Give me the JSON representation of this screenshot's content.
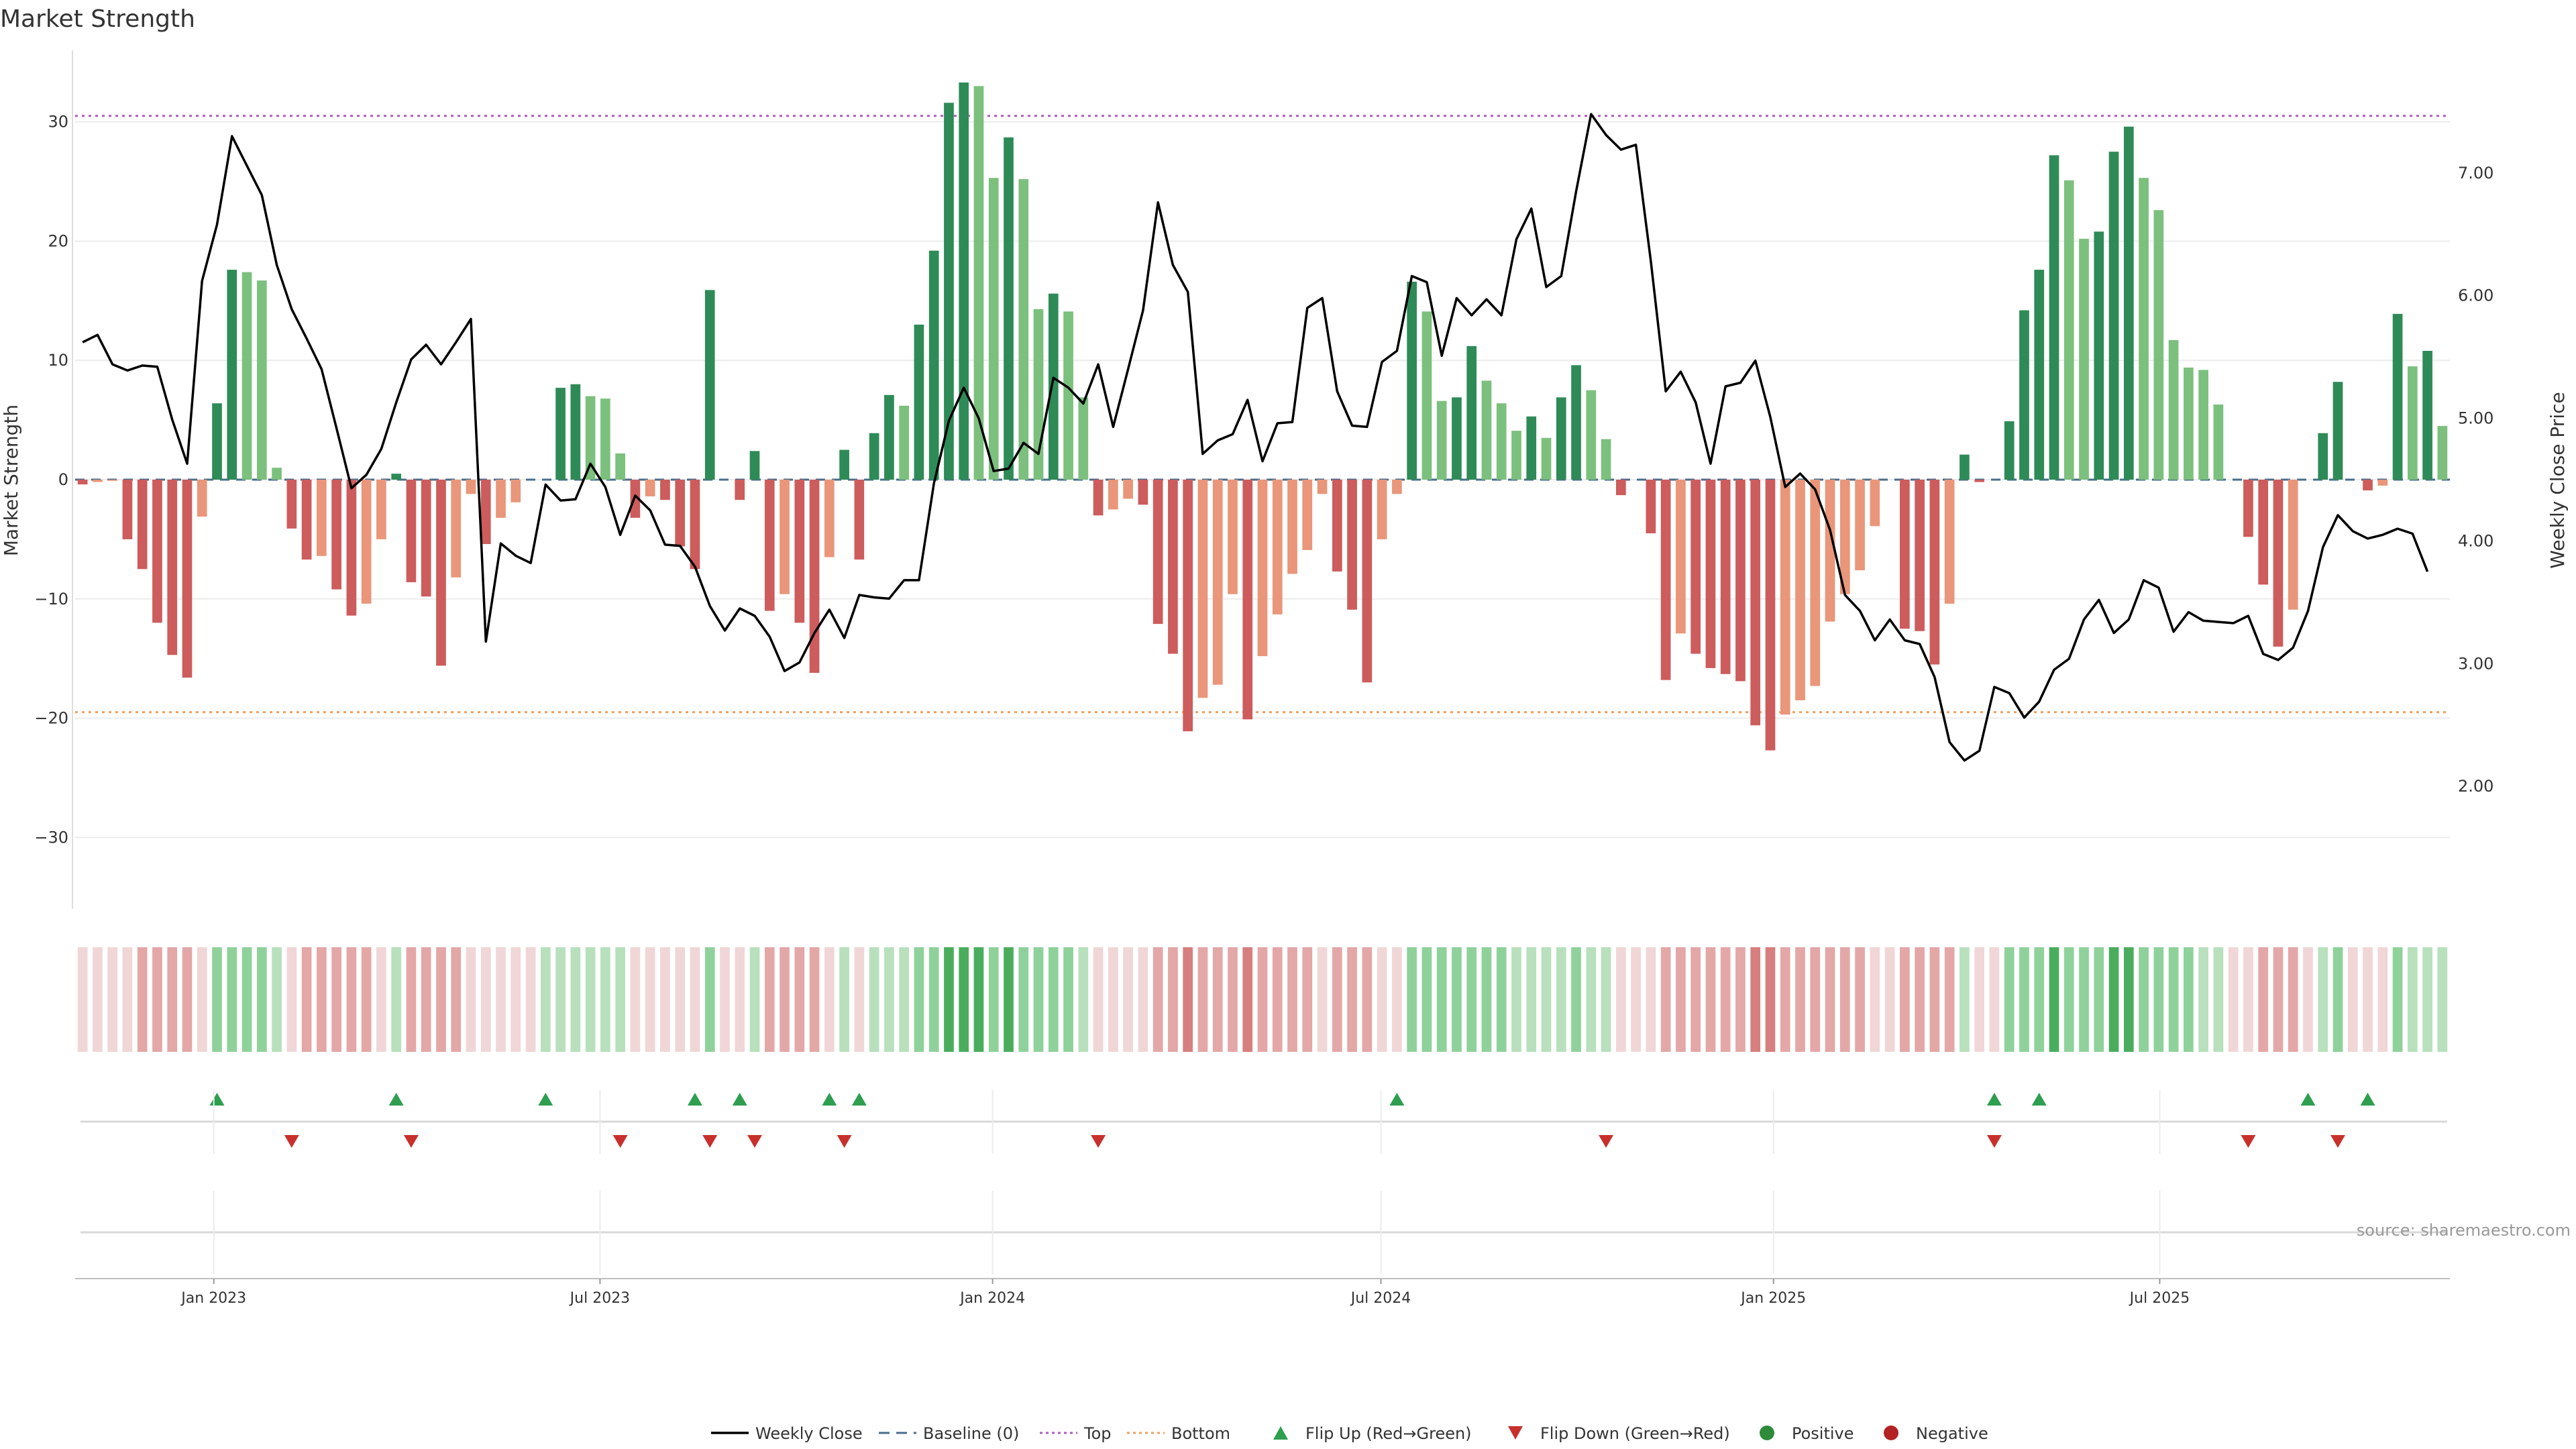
{
  "title": "Market Strength",
  "source": "source: sharemaestro.com",
  "chart_data": {
    "type": "bar",
    "title": "Market Strength",
    "ylabel": "Market Strength",
    "y2label": "Weekly Close Price",
    "ylim": [
      -36,
      36
    ],
    "y2lim": [
      1.0,
      8.0
    ],
    "yticks": [
      30,
      20,
      10,
      0,
      -10,
      -20,
      -30
    ],
    "y2ticks": [
      "7.00",
      "6.00",
      "5.00",
      "4.00",
      "3.00",
      "2.00"
    ],
    "x_start": "2022-10-28",
    "x_end": "2025-11-14",
    "date_ticks": [
      {
        "label": "Jan 2023",
        "date": "2023-01-01"
      },
      {
        "label": "Jul 2023",
        "date": "2023-07-01"
      },
      {
        "label": "Jan 2024",
        "date": "2024-01-01"
      },
      {
        "label": "Jul 2024",
        "date": "2024-07-01"
      },
      {
        "label": "Jan 2025",
        "date": "2025-01-01"
      },
      {
        "label": "Jul 2025",
        "date": "2025-07-01"
      }
    ],
    "top_line": 30.5,
    "bottom_line": -19.5,
    "strength": [
      -0.4,
      -0.2,
      -0.1,
      -5,
      -7.5,
      -12,
      -14.7,
      -16.6,
      -3.1,
      6.4,
      17.6,
      17.4,
      16.7,
      1,
      -4.1,
      -6.7,
      -6.4,
      -9.2,
      -11.4,
      -10.4,
      -5,
      0.5,
      -8.6,
      -9.8,
      -15.6,
      -8.2,
      -1.2,
      -5.4,
      -3.2,
      -1.9,
      0,
      0,
      7.7,
      8,
      7,
      6.8,
      2.2,
      -3.2,
      -1.4,
      -1.7,
      -5.6,
      -7.5,
      15.9,
      0,
      -1.7,
      2.4,
      -11,
      -9.6,
      -12,
      -16.2,
      -6.5,
      2.5,
      -6.7,
      3.9,
      7.1,
      6.2,
      13,
      19.2,
      31.6,
      33.3,
      33,
      25.3,
      28.7,
      25.2,
      14.3,
      15.6,
      14.1,
      6.9,
      -3,
      -2.5,
      -1.6,
      -2.1,
      -12.1,
      -14.6,
      -21.1,
      -18.3,
      -17.2,
      -9.6,
      -20.1,
      -14.8,
      -11.3,
      -7.9,
      -5.9,
      -1.2,
      -7.7,
      -10.9,
      -17,
      -5,
      -1.2,
      16.6,
      14.1,
      6.6,
      6.9,
      11.2,
      8.3,
      6.4,
      4.1,
      5.3,
      3.5,
      6.9,
      9.6,
      7.5,
      3.4,
      -1.3,
      0,
      -4.5,
      -16.8,
      -12.9,
      -14.6,
      -15.8,
      -16.3,
      -16.9,
      -20.6,
      -22.7,
      -19.7,
      -18.5,
      -17.3,
      -11.9,
      -9.6,
      -7.6,
      -3.9,
      0,
      -12.5,
      -12.7,
      -15.5,
      -10.4,
      2.1,
      -0.2,
      0,
      4.9,
      14.2,
      17.6,
      27.2,
      25.1,
      20.2,
      20.8,
      27.5,
      29.6,
      25.3,
      22.6,
      11.7,
      9.4,
      9.2,
      6.3,
      0,
      -4.8,
      -8.8,
      -14,
      -10.9,
      0,
      3.9,
      8.2,
      0,
      -0.9,
      -0.5,
      13.9,
      9.5,
      10.8,
      4.5
    ],
    "close": [
      5.62,
      5.68,
      5.44,
      5.39,
      5.43,
      5.42,
      4.99,
      4.63,
      6.12,
      6.58,
      7.3,
      7.06,
      6.82,
      6.25,
      5.89,
      5.65,
      5.4,
      4.92,
      4.43,
      4.54,
      4.75,
      5.13,
      5.48,
      5.6,
      5.44,
      5.62,
      5.81,
      3.18,
      3.98,
      3.88,
      3.82,
      4.46,
      4.33,
      4.34,
      4.63,
      4.44,
      4.05,
      4.37,
      4.25,
      3.97,
      3.96,
      3.79,
      3.47,
      3.27,
      3.45,
      3.39,
      3.22,
      2.94,
      3.01,
      3.25,
      3.44,
      3.21,
      3.56,
      3.54,
      3.53,
      3.68,
      3.68,
      4.47,
      4.98,
      5.25,
      5.0,
      4.57,
      4.59,
      4.8,
      4.71,
      5.33,
      5.25,
      5.12,
      5.44,
      4.93,
      5.4,
      5.88,
      6.76,
      6.25,
      6.03,
      4.71,
      4.82,
      4.87,
      5.15,
      4.65,
      4.96,
      4.97,
      5.9,
      5.98,
      5.22,
      4.94,
      4.93,
      5.46,
      5.55,
      6.16,
      6.11,
      5.51,
      5.98,
      5.84,
      5.97,
      5.84,
      6.46,
      6.71,
      6.07,
      6.16,
      6.85,
      7.48,
      7.31,
      7.19,
      7.23,
      6.28,
      5.22,
      5.38,
      5.13,
      4.63,
      5.26,
      5.29,
      5.47,
      5.01,
      4.44,
      4.55,
      4.42,
      4.09,
      3.56,
      3.43,
      3.19,
      3.36,
      3.19,
      3.16,
      2.89,
      2.36,
      2.21,
      2.29,
      2.81,
      2.76,
      2.56,
      2.69,
      2.95,
      3.04,
      3.36,
      3.52,
      3.25,
      3.36,
      3.68,
      3.62,
      3.26,
      3.42,
      3.35,
      3.34,
      3.33,
      3.39,
      3.08,
      3.03,
      3.13,
      3.43,
      3.95,
      4.21,
      4.08,
      4.02,
      4.05,
      4.1,
      4.06,
      3.75
    ],
    "band": [
      "NL",
      "NL",
      "NL",
      "NL",
      "NM",
      "NM",
      "NM",
      "NM",
      "NL",
      "PM",
      "PM",
      "PM",
      "PM",
      "PL",
      "NL",
      "NM",
      "NM",
      "NM",
      "NM",
      "NM",
      "NL",
      "PL",
      "NM",
      "NM",
      "NM",
      "NM",
      "NL",
      "NL",
      "NL",
      "NL",
      "NL",
      "PL",
      "PL",
      "PL",
      "PL",
      "PL",
      "PL",
      "NL",
      "NL",
      "NL",
      "NL",
      "NL",
      "PM",
      "NL",
      "NL",
      "PL",
      "NM",
      "NM",
      "NM",
      "NM",
      "NL",
      "PL",
      "NL",
      "PL",
      "PL",
      "PL",
      "PM",
      "PM",
      "PD",
      "PD",
      "PD",
      "PM",
      "PD",
      "PM",
      "PM",
      "PM",
      "PM",
      "PL",
      "NL",
      "NL",
      "NL",
      "NL",
      "NM",
      "NM",
      "ND",
      "NM",
      "NM",
      "NM",
      "ND",
      "NM",
      "NM",
      "NM",
      "NM",
      "NL",
      "NM",
      "NM",
      "NM",
      "NL",
      "NL",
      "PM",
      "PM",
      "PM",
      "PM",
      "PM",
      "PM",
      "PM",
      "PL",
      "PL",
      "PL",
      "PL",
      "PM",
      "PL",
      "PL",
      "NL",
      "NL",
      "NL",
      "NM",
      "NM",
      "NM",
      "NM",
      "NM",
      "NM",
      "ND",
      "ND",
      "NM",
      "NM",
      "NM",
      "NM",
      "NM",
      "NM",
      "NL",
      "NL",
      "NM",
      "NM",
      "NM",
      "NM",
      "PL",
      "NL",
      "NL",
      "PM",
      "PM",
      "PM",
      "PD",
      "PM",
      "PM",
      "PM",
      "PD",
      "PD",
      "PM",
      "PM",
      "PM",
      "PM",
      "PL",
      "PL",
      "NL",
      "NL",
      "NM",
      "NM",
      "NM",
      "NL",
      "PL",
      "PM",
      "NL",
      "NL",
      "NL",
      "PM",
      "PL",
      "PL",
      "PL"
    ],
    "flip_up": [
      9,
      21,
      31,
      41,
      44,
      50,
      52,
      88,
      128,
      131,
      149,
      153
    ],
    "flip_down": [
      14,
      22,
      36,
      42,
      45,
      51,
      68,
      102,
      128,
      145,
      151
    ]
  },
  "legend": [
    {
      "label": "Weekly Close",
      "kind": "line",
      "color": "#000000"
    },
    {
      "label": "Baseline (0)",
      "kind": "dash",
      "color": "#4a6d8c"
    },
    {
      "label": "Top",
      "kind": "dot",
      "color": "#b05ac0"
    },
    {
      "label": "Bottom",
      "kind": "dot",
      "color": "#f0a060"
    },
    {
      "label": "Flip Up (Red→Green)",
      "kind": "up",
      "color": "#2e9e4f"
    },
    {
      "label": "Flip Down (Green→Red)",
      "kind": "down",
      "color": "#c8302c"
    },
    {
      "label": "Positive",
      "kind": "circle",
      "color": "#2e8b3a"
    },
    {
      "label": "Negative",
      "kind": "circle",
      "color": "#b22222"
    }
  ],
  "colors": {
    "pos_dark": "#2e8b57",
    "pos_light": "#7cc07e",
    "neg_dark": "#cd5c5c",
    "neg_light": "#e9967a",
    "band_PL": "#b8e0bd",
    "band_PM": "#8fd19b",
    "band_PD": "#4aad5e",
    "band_NL": "#f0d6d6",
    "band_NM": "#e3a7a7",
    "band_ND": "#d77f7f"
  }
}
